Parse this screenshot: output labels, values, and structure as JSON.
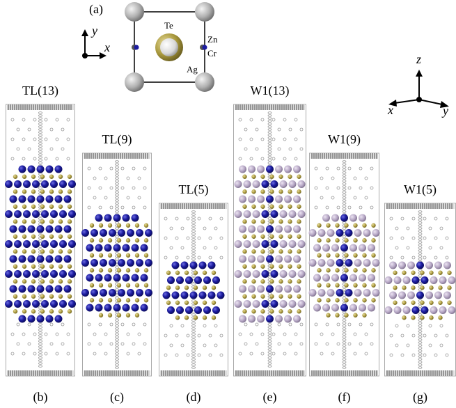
{
  "panel_a": {
    "label": "(a)",
    "axis_y": "y",
    "axis_x": "x",
    "atoms": {
      "te": "Te",
      "zn": "Zn",
      "cr": "Cr",
      "ag": "Ag"
    }
  },
  "axes_3d": {
    "z": "z",
    "x": "x",
    "y": "y"
  },
  "structures": [
    {
      "title": "TL(13)",
      "label": "(b)"
    },
    {
      "title": "TL(9)",
      "label": "(c)"
    },
    {
      "title": "TL(5)",
      "label": "(d)"
    },
    {
      "title": "W1(13)",
      "label": "(e)"
    },
    {
      "title": "W1(9)",
      "label": "(f)"
    },
    {
      "title": "W1(5)",
      "label": "(g)"
    }
  ]
}
